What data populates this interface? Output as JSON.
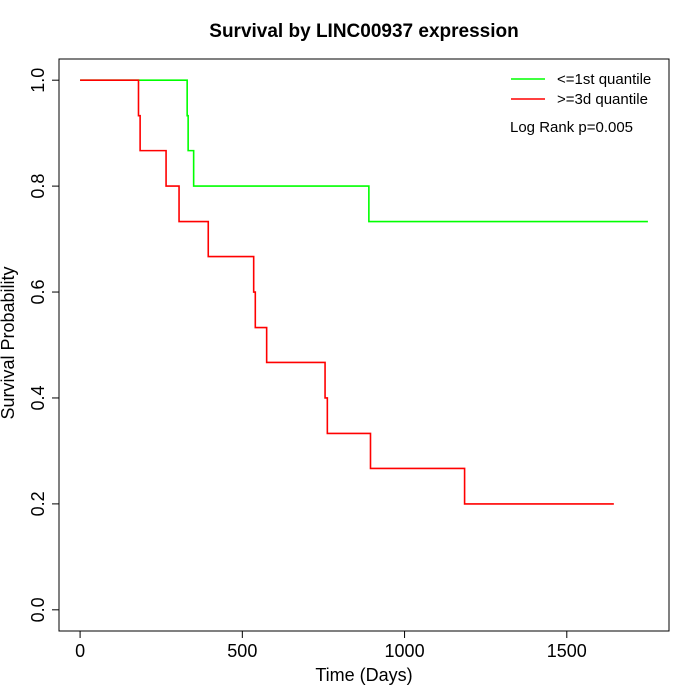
{
  "chart_data": {
    "type": "line",
    "title": "Survival by LINC00937 expression",
    "xlabel": "Time (Days)",
    "ylabel": "Survival Probability",
    "xlim": [
      0,
      1800
    ],
    "ylim": [
      0,
      1.0
    ],
    "x_ticks": [
      0,
      500,
      1000,
      1500
    ],
    "y_ticks": [
      0.0,
      0.2,
      0.4,
      0.6,
      0.8,
      1.0
    ],
    "x_tick_labels": [
      "0",
      "500",
      "1000",
      "1500"
    ],
    "y_tick_labels": [
      "0.0",
      "0.2",
      "0.4",
      "0.6",
      "0.8",
      "1.0"
    ],
    "legend_position": "top-right",
    "grid": false,
    "annotation": "Log Rank p=0.005",
    "series": [
      {
        "name": "<=1st quantile",
        "color": "#00ff00",
        "step": true,
        "x": [
          0,
          330,
          333,
          350,
          890,
          1750
        ],
        "y": [
          1.0,
          0.933,
          0.867,
          0.8,
          0.733,
          0.733
        ]
      },
      {
        "name": ">=3d quantile",
        "color": "#ff0000",
        "step": true,
        "x": [
          0,
          180,
          185,
          265,
          305,
          395,
          535,
          540,
          575,
          755,
          762,
          895,
          1185,
          1645
        ],
        "y": [
          1.0,
          0.933,
          0.867,
          0.8,
          0.733,
          0.667,
          0.6,
          0.533,
          0.467,
          0.4,
          0.333,
          0.267,
          0.2,
          0.2
        ]
      }
    ]
  }
}
